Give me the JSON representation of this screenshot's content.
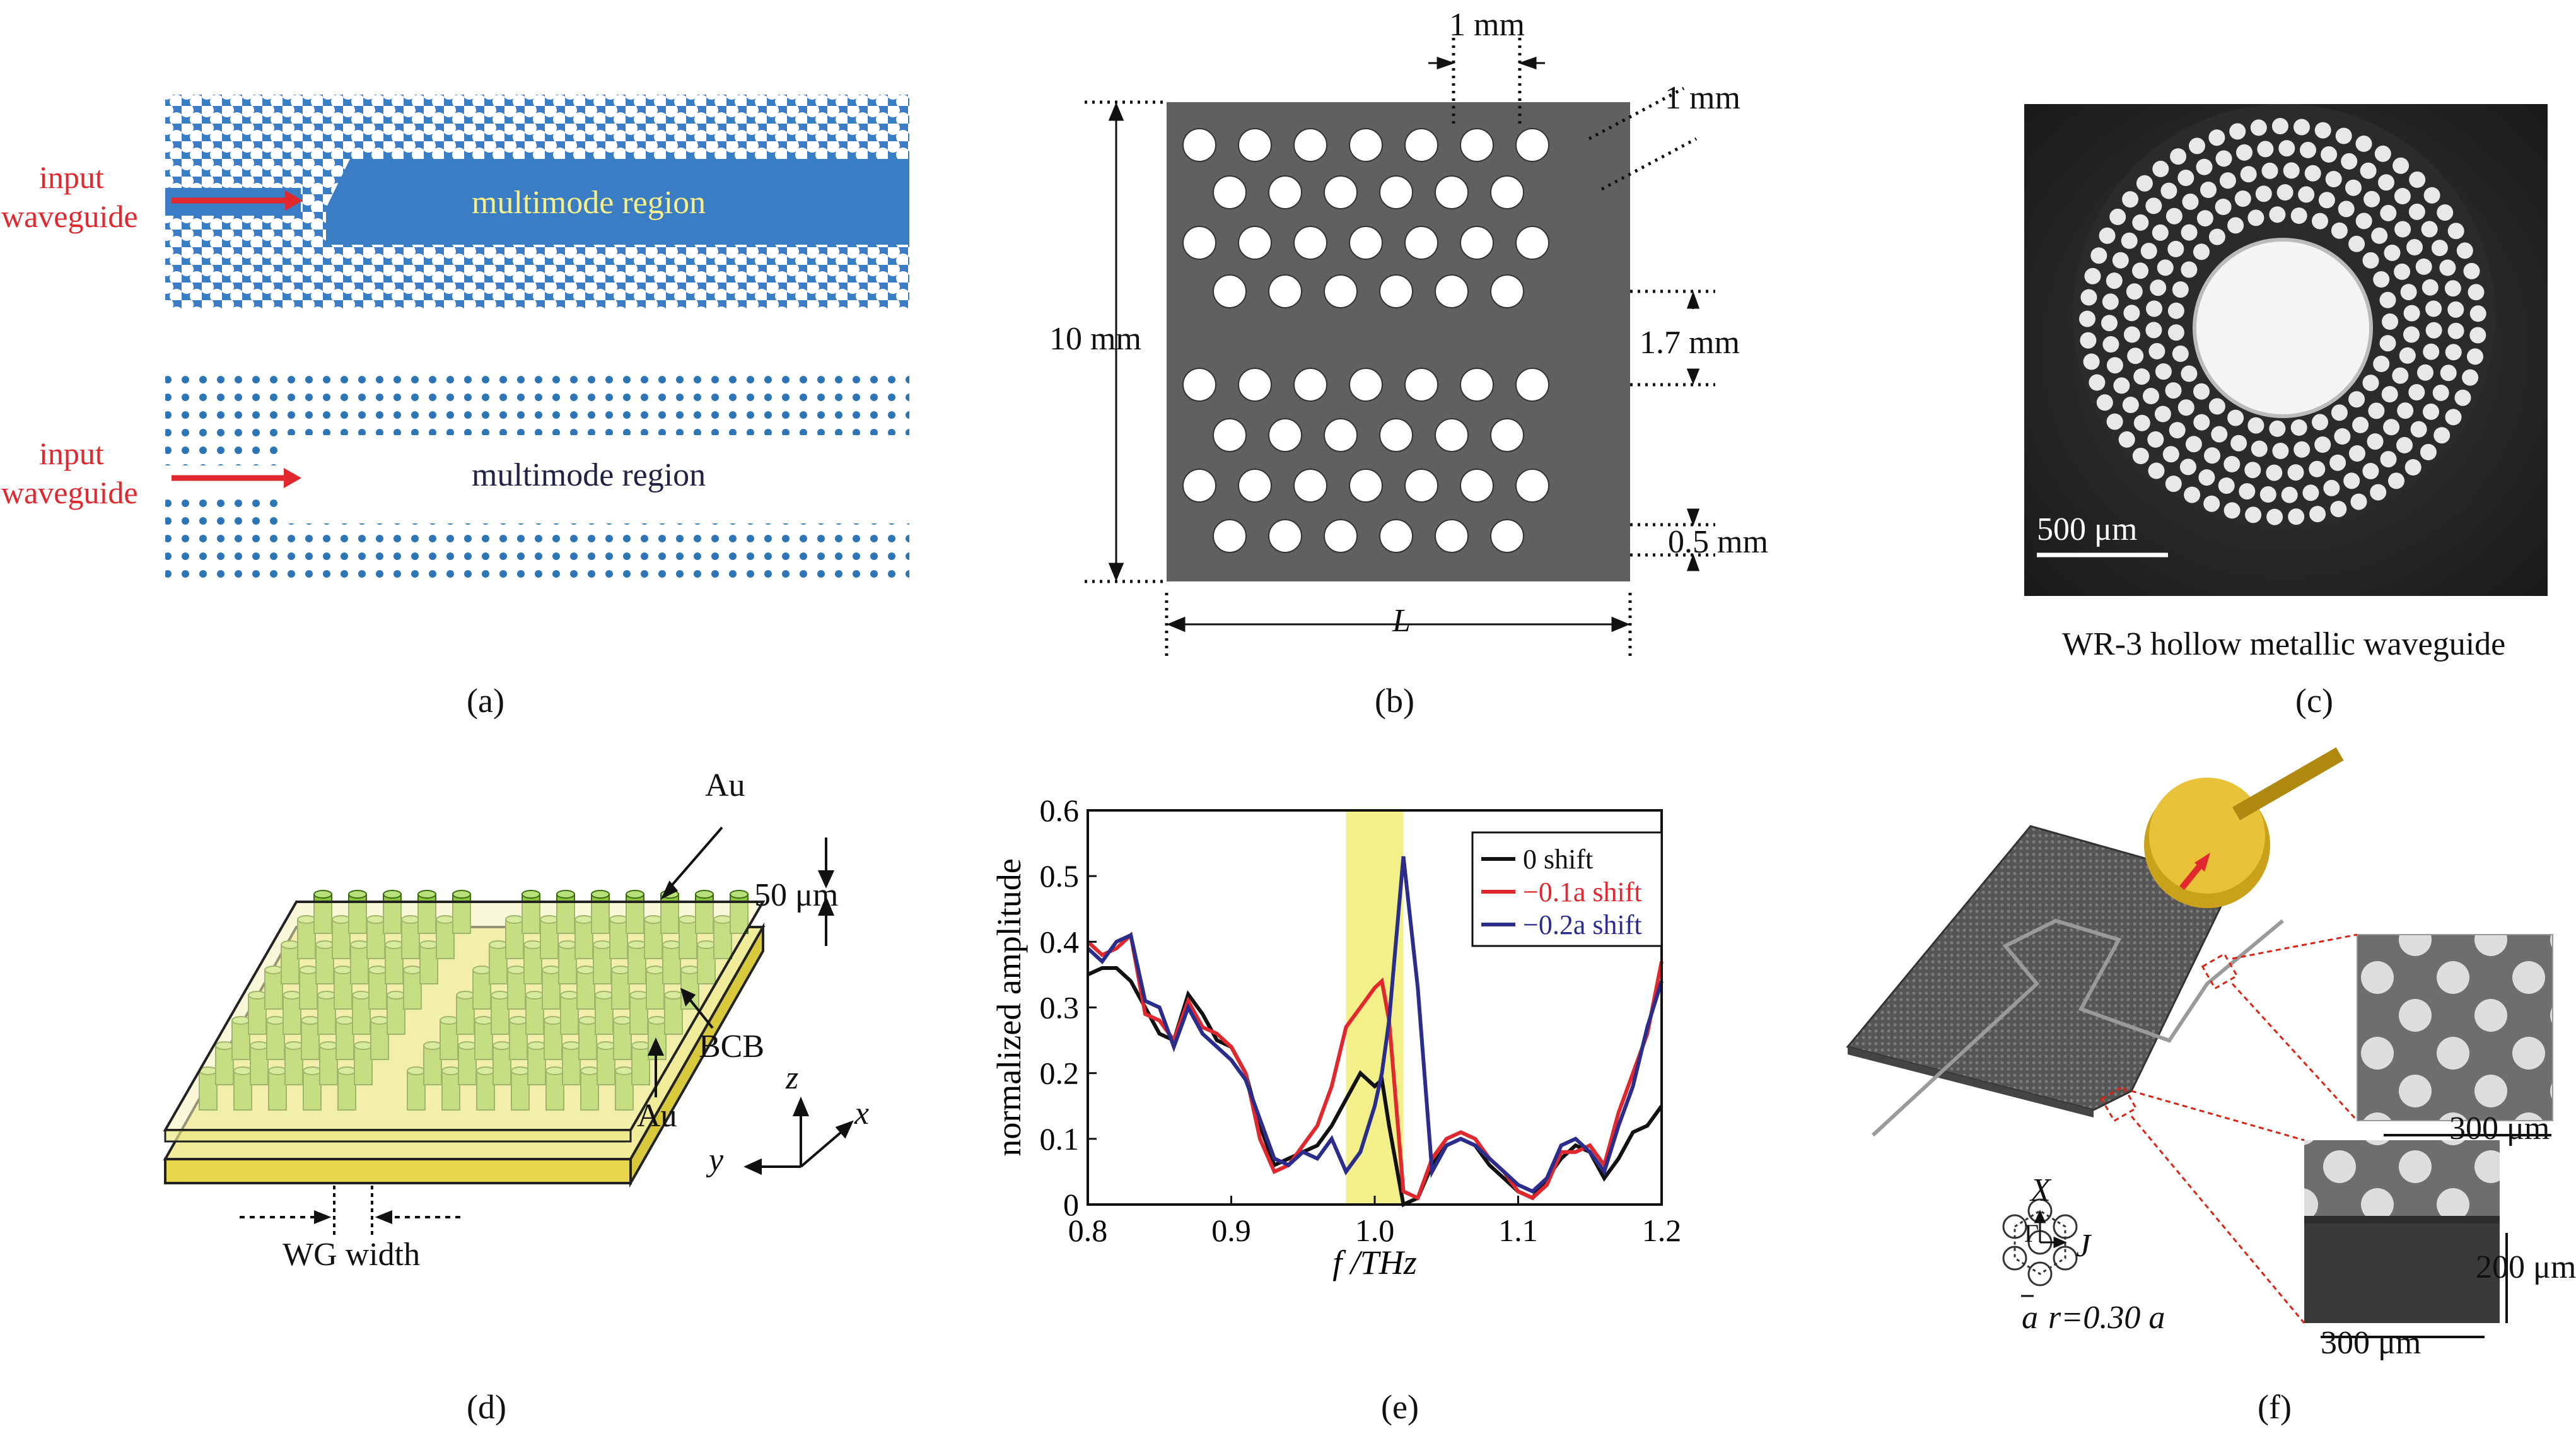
{
  "captions": {
    "a": "(a)",
    "b": "(b)",
    "c": "(c)",
    "d": "(d)",
    "e": "(e)",
    "f": "(f)"
  },
  "panel_a": {
    "input_label_1a": "input",
    "input_label_1b": "waveguide",
    "region_1": "multimode region",
    "input_label_2a": "input",
    "input_label_2b": "waveguide",
    "region_2": "multimode region",
    "colors": {
      "slab": "#3b7dc4",
      "hole": "#ffffff",
      "dot": "#2e75b6",
      "arrow": "#e0282e",
      "region_text_1": "#f5f08a",
      "region_text_2": "#222244"
    }
  },
  "panel_b": {
    "dim_top": "1 mm",
    "dim_diag": "1 mm",
    "dim_height": "10 mm",
    "dim_gap": "1.7 mm",
    "dim_small": "0.5 mm",
    "dim_length": "L",
    "colors": {
      "plate": "#606060"
    }
  },
  "panel_c": {
    "scalebar": "500 μm",
    "title": "WR-3 hollow metallic waveguide"
  },
  "panel_d": {
    "top_label": "Au",
    "thickness": "50 μm",
    "middle_label": "BCB",
    "bottom_label": "Au",
    "axis_z": "z",
    "axis_x": "x",
    "axis_y": "y",
    "width_label": "WG width",
    "colors": {
      "gold": "#f0ec9a",
      "pillar": "#8cc63f"
    }
  },
  "panel_e": {
    "chart_data": {
      "type": "line",
      "xlabel": "f /THz",
      "ylabel": "normalized amplitude",
      "xlim": [
        0.8,
        1.2
      ],
      "ylim": [
        0,
        0.6
      ],
      "xticks": [
        "0.8",
        "0.9",
        "1.0",
        "1.1",
        "1.2"
      ],
      "yticks": [
        "0",
        "0.1",
        "0.2",
        "0.3",
        "0.4",
        "0.5",
        "0.6"
      ],
      "highlight_band": [
        0.98,
        1.02
      ],
      "highlight_color": "#f3f08a",
      "legend_position": "top-right",
      "series": [
        {
          "name": "0 shift",
          "color": "#111111",
          "x": [
            0.8,
            0.81,
            0.82,
            0.83,
            0.84,
            0.85,
            0.86,
            0.87,
            0.88,
            0.89,
            0.9,
            0.91,
            0.92,
            0.93,
            0.94,
            0.95,
            0.96,
            0.97,
            0.98,
            0.99,
            1.0,
            1.005,
            1.01,
            1.02,
            1.03,
            1.04,
            1.05,
            1.06,
            1.07,
            1.08,
            1.09,
            1.1,
            1.11,
            1.12,
            1.13,
            1.14,
            1.15,
            1.16,
            1.17,
            1.18,
            1.19,
            1.2
          ],
          "y": [
            0.35,
            0.36,
            0.36,
            0.34,
            0.3,
            0.26,
            0.25,
            0.32,
            0.29,
            0.25,
            0.24,
            0.2,
            0.12,
            0.06,
            0.07,
            0.08,
            0.09,
            0.12,
            0.16,
            0.2,
            0.18,
            0.19,
            0.12,
            0.0,
            0.01,
            0.06,
            0.09,
            0.1,
            0.09,
            0.06,
            0.04,
            0.02,
            0.01,
            0.04,
            0.07,
            0.09,
            0.08,
            0.04,
            0.07,
            0.11,
            0.12,
            0.15
          ]
        },
        {
          "name": "−0.1a shift",
          "color": "#e0282e",
          "x": [
            0.8,
            0.81,
            0.82,
            0.83,
            0.84,
            0.85,
            0.86,
            0.87,
            0.88,
            0.89,
            0.9,
            0.91,
            0.92,
            0.93,
            0.94,
            0.95,
            0.96,
            0.97,
            0.98,
            0.99,
            1.0,
            1.005,
            1.01,
            1.02,
            1.03,
            1.04,
            1.05,
            1.06,
            1.07,
            1.08,
            1.09,
            1.1,
            1.11,
            1.12,
            1.13,
            1.14,
            1.15,
            1.16,
            1.17,
            1.18,
            1.19,
            1.2
          ],
          "y": [
            0.4,
            0.38,
            0.39,
            0.41,
            0.29,
            0.28,
            0.25,
            0.31,
            0.27,
            0.26,
            0.24,
            0.2,
            0.1,
            0.05,
            0.06,
            0.09,
            0.12,
            0.18,
            0.27,
            0.3,
            0.33,
            0.34,
            0.28,
            0.02,
            0.01,
            0.07,
            0.1,
            0.11,
            0.1,
            0.07,
            0.05,
            0.02,
            0.01,
            0.03,
            0.08,
            0.08,
            0.09,
            0.06,
            0.14,
            0.2,
            0.26,
            0.37
          ]
        },
        {
          "name": "−0.2a shift",
          "color": "#2b2d8c",
          "x": [
            0.8,
            0.81,
            0.82,
            0.83,
            0.84,
            0.85,
            0.86,
            0.87,
            0.88,
            0.89,
            0.9,
            0.91,
            0.92,
            0.93,
            0.94,
            0.95,
            0.96,
            0.97,
            0.98,
            0.99,
            1.0,
            1.005,
            1.01,
            1.02,
            1.03,
            1.04,
            1.05,
            1.06,
            1.07,
            1.08,
            1.09,
            1.1,
            1.11,
            1.12,
            1.13,
            1.14,
            1.15,
            1.16,
            1.17,
            1.18,
            1.19,
            1.2
          ],
          "y": [
            0.39,
            0.37,
            0.4,
            0.41,
            0.31,
            0.3,
            0.24,
            0.3,
            0.26,
            0.24,
            0.22,
            0.19,
            0.13,
            0.07,
            0.06,
            0.08,
            0.07,
            0.1,
            0.05,
            0.08,
            0.15,
            0.2,
            0.28,
            0.53,
            0.33,
            0.05,
            0.09,
            0.1,
            0.09,
            0.07,
            0.05,
            0.03,
            0.02,
            0.04,
            0.09,
            0.1,
            0.08,
            0.05,
            0.12,
            0.18,
            0.27,
            0.34
          ]
        }
      ]
    }
  },
  "panel_f": {
    "scale_1": "300 μm",
    "scale_2": "200 μm",
    "scale_3": "300 μm",
    "sym_x": "X",
    "sym_gamma": "Γ",
    "sym_j": "J",
    "sym_a": "a",
    "radius_label": "r=0.30 a"
  }
}
